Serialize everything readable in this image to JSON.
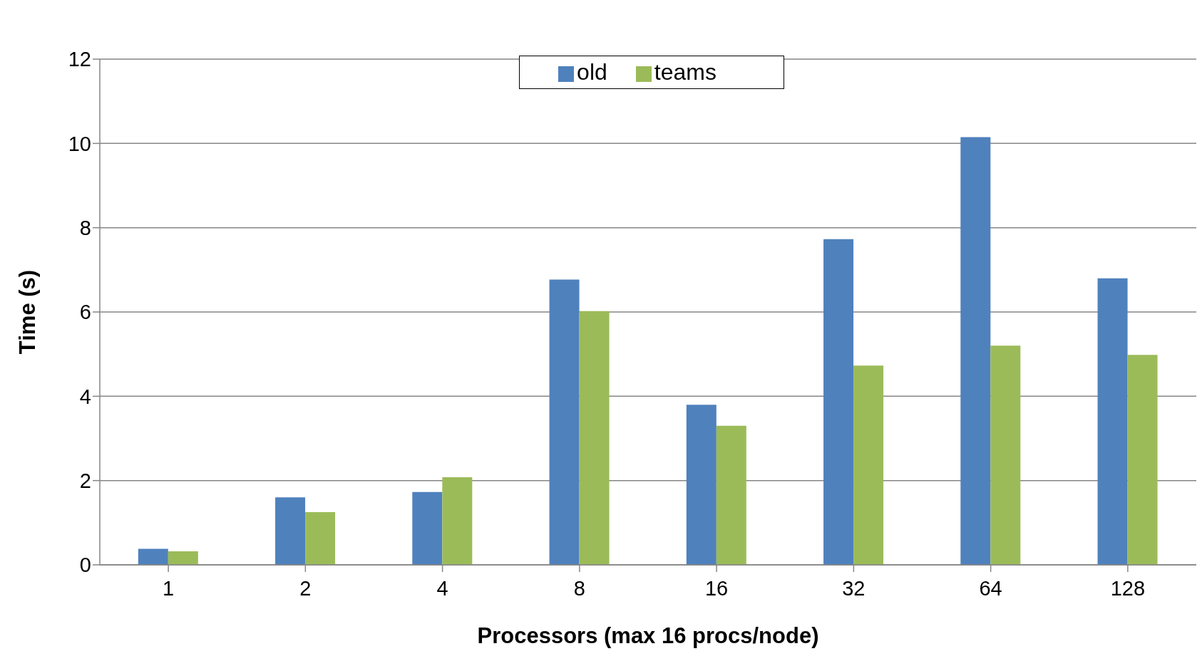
{
  "chart_data": {
    "type": "bar",
    "xlabel": "Processors (max 16 procs/node)",
    "ylabel": "Time (s)",
    "categories": [
      "1",
      "2",
      "4",
      "8",
      "16",
      "32",
      "64",
      "128"
    ],
    "series": [
      {
        "name": "old",
        "color": "#4f81bd",
        "values": [
          0.38,
          1.6,
          1.73,
          6.77,
          3.8,
          7.73,
          10.15,
          6.8
        ]
      },
      {
        "name": "teams",
        "color": "#9bbb59",
        "values": [
          0.32,
          1.25,
          2.08,
          6.02,
          3.3,
          4.73,
          5.2,
          4.98
        ]
      }
    ],
    "ylim": [
      0,
      12
    ],
    "yticks": [
      0,
      2,
      4,
      6,
      8,
      10,
      12
    ],
    "grid": "y",
    "legend": "top"
  }
}
